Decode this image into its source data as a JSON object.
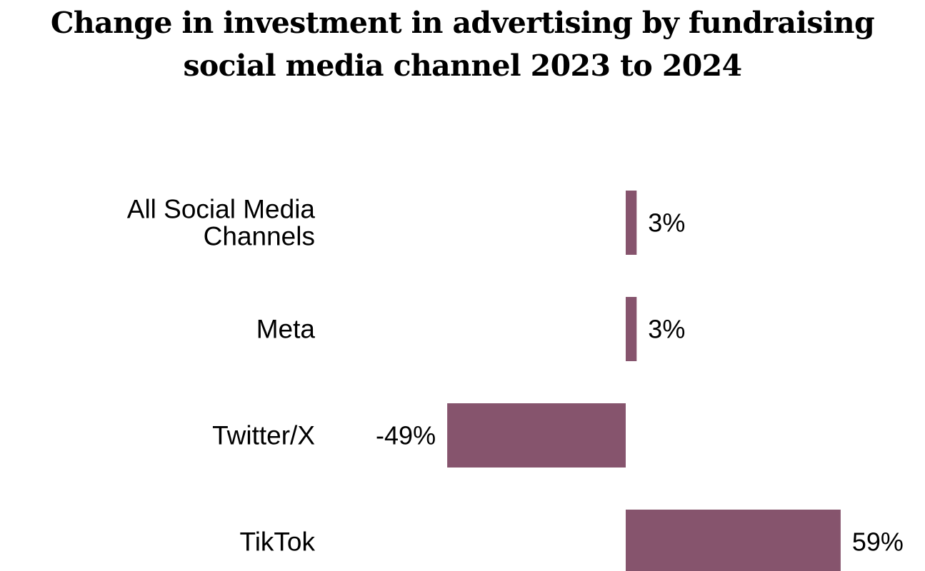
{
  "chart_data": {
    "type": "bar",
    "orientation": "horizontal",
    "title": "Change in investment in advertising by fundraising social media channel 2023 to 2024",
    "categories": [
      [
        "All Social Media",
        "Channels"
      ],
      [
        "Meta"
      ],
      [
        "Twitter/X"
      ],
      [
        "TikTok"
      ]
    ],
    "values": [
      3,
      3,
      -49,
      59
    ],
    "value_labels": [
      "3%",
      "3%",
      "-49%",
      "59%"
    ],
    "bar_color": "#86546D",
    "grid": false,
    "legend": "none",
    "xlabel": "",
    "ylabel": ""
  }
}
